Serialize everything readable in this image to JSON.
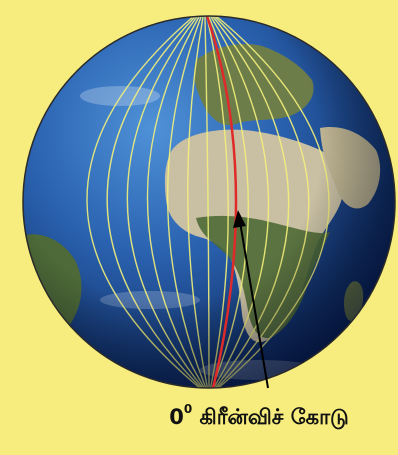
{
  "figure": {
    "background_color": "#f7ed7e",
    "globe": {
      "ocean_colors": [
        "#3f80c8",
        "#1f4f9b",
        "#0d2c66"
      ],
      "land_colors": [
        "#d9d2bd",
        "#8a8a5c",
        "#5c6f3a"
      ],
      "meridian_color": "#f3f07a",
      "prime_meridian_color": "#e02a2a",
      "meridian_count": 13
    },
    "annotation": {
      "degree_value": "0",
      "degree_symbol": "0",
      "text": "கிரீன்விச் கோடு",
      "arrow_color": "#000000"
    }
  }
}
